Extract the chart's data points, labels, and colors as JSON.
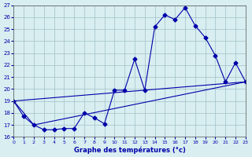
{
  "xlabel": "Graphe des températures (°c)",
  "background_color": "#d8eef0",
  "grid_color": "#a0c0c8",
  "line_color": "#0000aa",
  "ylim": [
    16,
    27
  ],
  "xlim": [
    0,
    23
  ],
  "yticks": [
    16,
    17,
    18,
    19,
    20,
    21,
    22,
    23,
    24,
    25,
    26,
    27
  ],
  "xticks": [
    0,
    1,
    2,
    3,
    4,
    5,
    6,
    7,
    8,
    9,
    10,
    11,
    12,
    13,
    14,
    15,
    16,
    17,
    18,
    19,
    20,
    21,
    22,
    23
  ],
  "line1_x": [
    0,
    1,
    2,
    3,
    4,
    5,
    6,
    7,
    8,
    9,
    10,
    11,
    12,
    13,
    14,
    15,
    16,
    17,
    18,
    19,
    20,
    21,
    22,
    23
  ],
  "line1_y": [
    19,
    17.7,
    17.0,
    16.6,
    16.6,
    16.7,
    16.7,
    18.0,
    17.6,
    17.1,
    19.9,
    19.9,
    22.5,
    19.9,
    25.2,
    26.2,
    25.8,
    26.8,
    25.3,
    24.3,
    22.8,
    20.6,
    22.2,
    20.6
  ],
  "line2_x": [
    0,
    23
  ],
  "line2_y": [
    19,
    20.6
  ],
  "line3_x": [
    0,
    2,
    23
  ],
  "line3_y": [
    19,
    17.0,
    20.6
  ]
}
